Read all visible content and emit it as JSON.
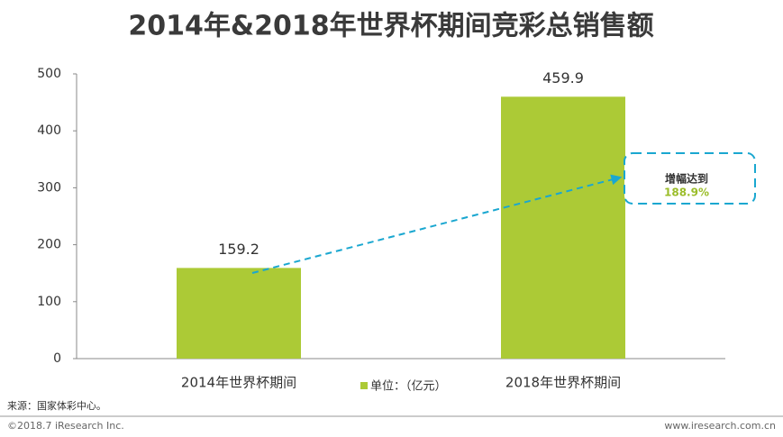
{
  "chart_data": {
    "type": "bar",
    "title": "2014年&2018年世界杯期间竞彩总销售额",
    "categories": [
      "2014年世界杯期间",
      "2018年世界杯期间"
    ],
    "series": [
      {
        "name": "单位：（亿元）",
        "color": "#acca36",
        "values": [
          159.2,
          459.9
        ]
      }
    ],
    "ylim": [
      0,
      500
    ],
    "yticks": [
      0,
      100,
      200,
      300,
      400,
      500
    ],
    "grid": false,
    "annotation": {
      "title": "增幅达到",
      "text": "188.9%"
    }
  },
  "footer": {
    "source": "来源：国家体彩中心。",
    "copyright": "©2018.7 iResearch Inc.",
    "website": "www.iresearch.com.cn"
  }
}
